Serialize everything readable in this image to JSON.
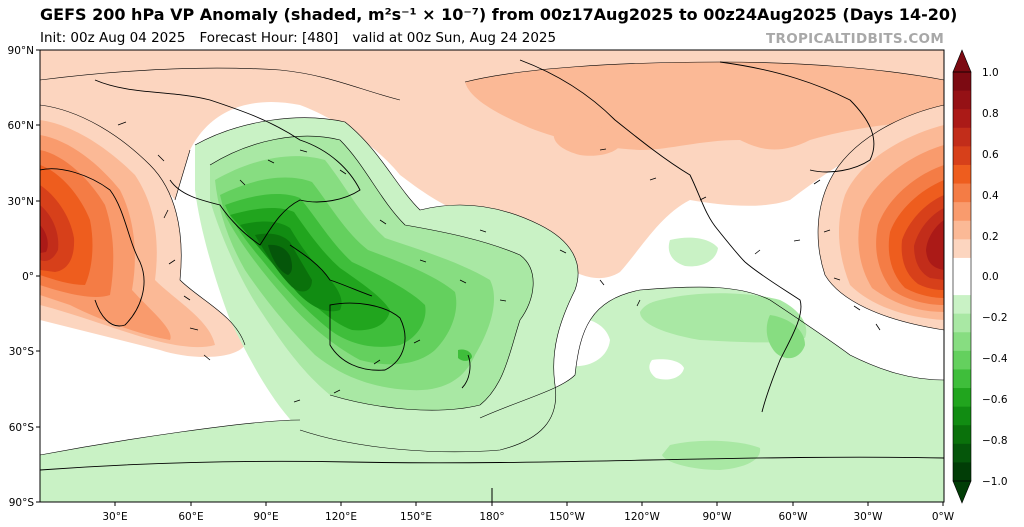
{
  "header": {
    "title": "GEFS 200 hPa VP Anomaly (shaded, m²s⁻¹ × 10⁻⁷) from 00z17Aug2025 to 00z24Aug2025 (Days 14-20)",
    "init": "Init: 00z Aug 04 2025",
    "forecast_hour": "Forecast Hour: [480]",
    "valid": "valid at 00z Sun, Aug 24 2025",
    "watermark": "TROPICALTIDBITS.COM"
  },
  "map": {
    "lat_labels": [
      "90°N",
      "60°N",
      "30°N",
      "0°",
      "30°S",
      "60°S",
      "90°S"
    ],
    "lon_labels": [
      "30°E",
      "60°E",
      "90°E",
      "120°E",
      "150°E",
      "180°",
      "150°W",
      "120°W",
      "90°W",
      "60°W",
      "30°W",
      "0°W"
    ]
  },
  "colorbar": {
    "labels": [
      "1.0",
      "0.8",
      "0.6",
      "0.4",
      "0.2",
      "0.0",
      "−0.2",
      "−0.4",
      "−0.6",
      "−0.8",
      "−1.0"
    ],
    "positive_colors": [
      "#fcd5bf",
      "#fbb996",
      "#f99b6d",
      "#f47c45",
      "#ee5d1e",
      "#d7401a",
      "#c22d1a",
      "#ab1a17",
      "#951115",
      "#7c0a12"
    ],
    "negative_colors": [
      "#c9f2c5",
      "#a9e8a4",
      "#87dd81",
      "#64d05e",
      "#3fbe3b",
      "#21a51e",
      "#118c12",
      "#0a710b",
      "#05560a",
      "#013d06"
    ]
  }
}
